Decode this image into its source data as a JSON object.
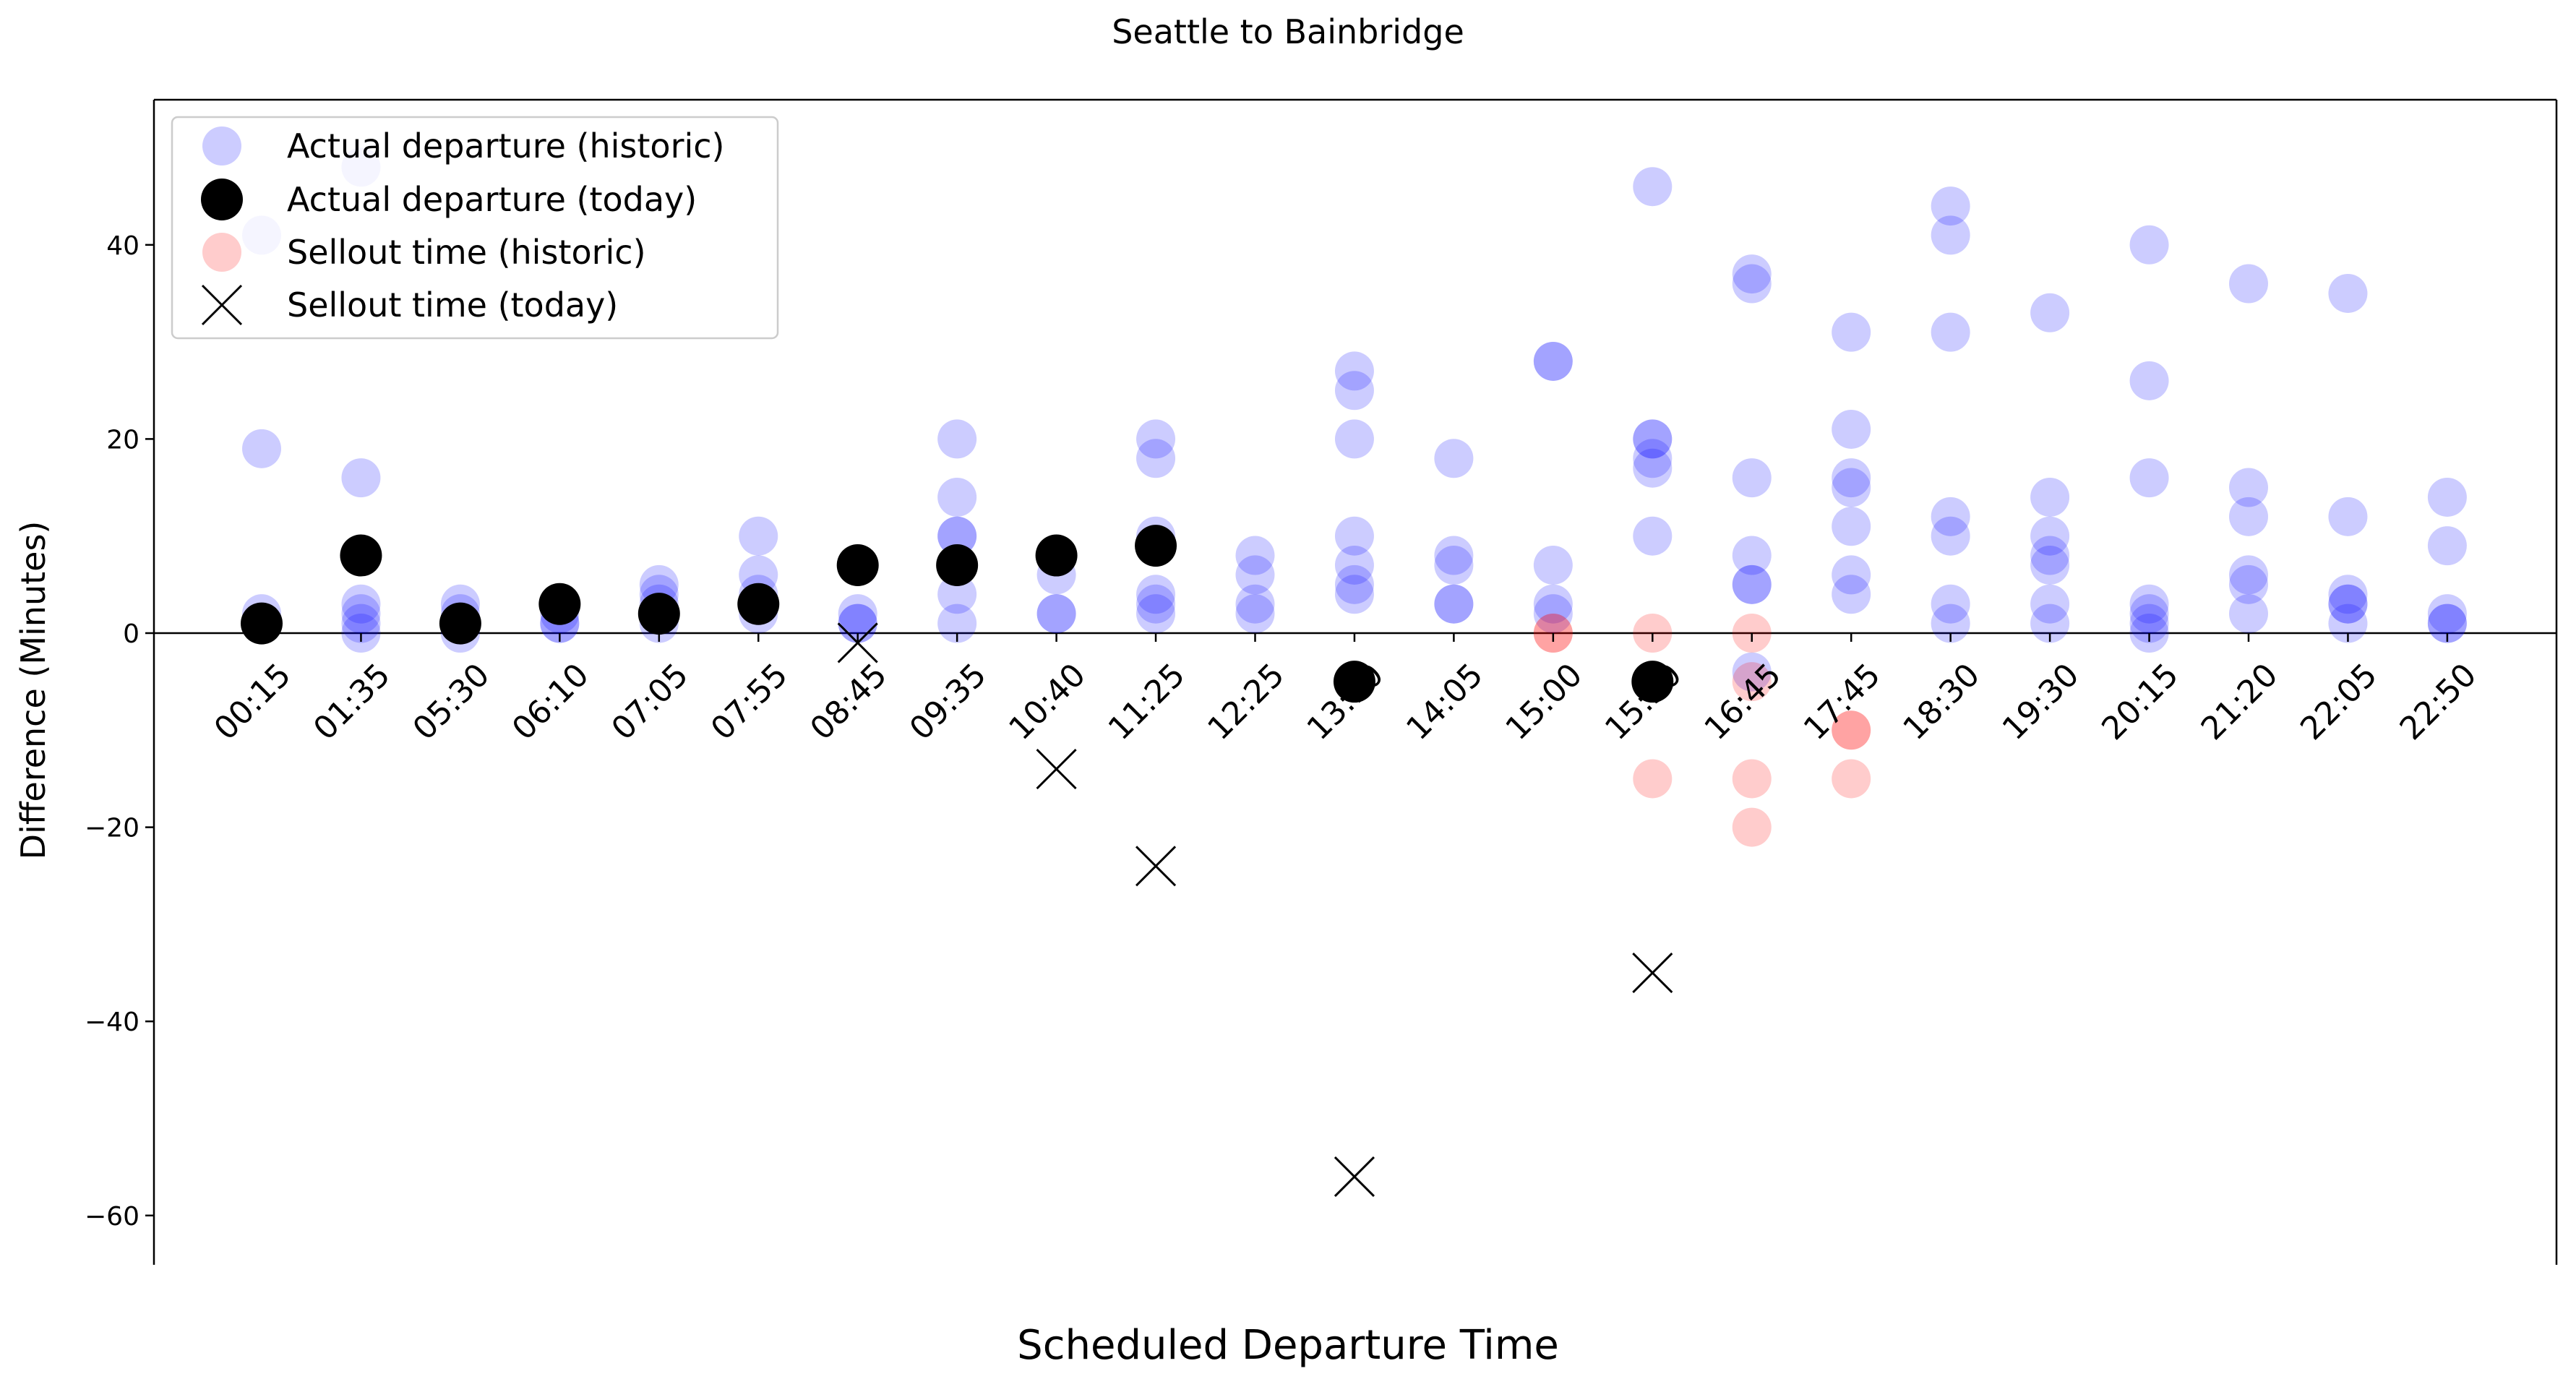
{
  "chart_data": {
    "type": "scatter",
    "title": "Seattle to Bainbridge",
    "xlabel": "Scheduled Departure Time",
    "ylabel": "Difference (Minutes)",
    "ylim": [
      -65,
      55
    ],
    "yticks": [
      40,
      20,
      0,
      -20,
      -40,
      -60
    ],
    "grid": false,
    "legend_position": "top-left",
    "reference_line_y": 0,
    "categories": [
      "00:15",
      "01:35",
      "05:30",
      "06:10",
      "07:05",
      "07:55",
      "08:45",
      "09:35",
      "10:40",
      "11:25",
      "12:25",
      "13:10",
      "14:05",
      "15:00",
      "15:50",
      "16:45",
      "17:45",
      "18:30",
      "19:30",
      "20:15",
      "21:20",
      "22:05",
      "22:50"
    ],
    "colors": {
      "historic_departure": "#0000ff",
      "today_departure": "#000000",
      "historic_sellout": "#ff0000",
      "today_sellout": "#000000"
    },
    "series": [
      {
        "name": "Actual departure (historic)",
        "marker": "circle",
        "points": [
          [
            "00:15",
            41
          ],
          [
            "00:15",
            19
          ],
          [
            "00:15",
            2
          ],
          [
            "00:15",
            1
          ],
          [
            "01:35",
            48
          ],
          [
            "01:35",
            16
          ],
          [
            "01:35",
            3
          ],
          [
            "01:35",
            2
          ],
          [
            "01:35",
            1
          ],
          [
            "01:35",
            0
          ],
          [
            "05:30",
            3
          ],
          [
            "05:30",
            2
          ],
          [
            "05:30",
            1
          ],
          [
            "05:30",
            0
          ],
          [
            "06:10",
            2
          ],
          [
            "06:10",
            1
          ],
          [
            "06:10",
            1
          ],
          [
            "07:05",
            5
          ],
          [
            "07:05",
            4
          ],
          [
            "07:05",
            3
          ],
          [
            "07:05",
            1
          ],
          [
            "07:55",
            10
          ],
          [
            "07:55",
            6
          ],
          [
            "07:55",
            4
          ],
          [
            "07:55",
            3
          ],
          [
            "07:55",
            2
          ],
          [
            "08:45",
            2
          ],
          [
            "08:45",
            1
          ],
          [
            "08:45",
            1
          ],
          [
            "09:35",
            20
          ],
          [
            "09:35",
            14
          ],
          [
            "09:35",
            10
          ],
          [
            "09:35",
            10
          ],
          [
            "09:35",
            4
          ],
          [
            "09:35",
            1
          ],
          [
            "10:40",
            8
          ],
          [
            "10:40",
            6
          ],
          [
            "10:40",
            2
          ],
          [
            "10:40",
            2
          ],
          [
            "11:25",
            20
          ],
          [
            "11:25",
            18
          ],
          [
            "11:25",
            10
          ],
          [
            "11:25",
            4
          ],
          [
            "11:25",
            3
          ],
          [
            "11:25",
            2
          ],
          [
            "12:25",
            8
          ],
          [
            "12:25",
            6
          ],
          [
            "12:25",
            3
          ],
          [
            "12:25",
            2
          ],
          [
            "13:10",
            27
          ],
          [
            "13:10",
            25
          ],
          [
            "13:10",
            20
          ],
          [
            "13:10",
            10
          ],
          [
            "13:10",
            7
          ],
          [
            "13:10",
            5
          ],
          [
            "13:10",
            4
          ],
          [
            "14:05",
            18
          ],
          [
            "14:05",
            8
          ],
          [
            "14:05",
            7
          ],
          [
            "14:05",
            3
          ],
          [
            "14:05",
            3
          ],
          [
            "15:00",
            28
          ],
          [
            "15:00",
            28
          ],
          [
            "15:00",
            7
          ],
          [
            "15:00",
            3
          ],
          [
            "15:00",
            2
          ],
          [
            "15:50",
            46
          ],
          [
            "15:50",
            20
          ],
          [
            "15:50",
            20
          ],
          [
            "15:50",
            18
          ],
          [
            "15:50",
            17
          ],
          [
            "15:50",
            10
          ],
          [
            "16:45",
            37
          ],
          [
            "16:45",
            36
          ],
          [
            "16:45",
            16
          ],
          [
            "16:45",
            8
          ],
          [
            "16:45",
            5
          ],
          [
            "16:45",
            5
          ],
          [
            "16:45",
            -4
          ],
          [
            "17:45",
            31
          ],
          [
            "17:45",
            21
          ],
          [
            "17:45",
            16
          ],
          [
            "17:45",
            15
          ],
          [
            "17:45",
            11
          ],
          [
            "17:45",
            6
          ],
          [
            "17:45",
            4
          ],
          [
            "18:30",
            44
          ],
          [
            "18:30",
            41
          ],
          [
            "18:30",
            31
          ],
          [
            "18:30",
            12
          ],
          [
            "18:30",
            10
          ],
          [
            "18:30",
            3
          ],
          [
            "18:30",
            1
          ],
          [
            "19:30",
            33
          ],
          [
            "19:30",
            14
          ],
          [
            "19:30",
            10
          ],
          [
            "19:30",
            8
          ],
          [
            "19:30",
            7
          ],
          [
            "19:30",
            3
          ],
          [
            "19:30",
            1
          ],
          [
            "20:15",
            40
          ],
          [
            "20:15",
            26
          ],
          [
            "20:15",
            16
          ],
          [
            "20:15",
            3
          ],
          [
            "20:15",
            2
          ],
          [
            "20:15",
            1
          ],
          [
            "20:15",
            0
          ],
          [
            "21:20",
            36
          ],
          [
            "21:20",
            15
          ],
          [
            "21:20",
            12
          ],
          [
            "21:20",
            6
          ],
          [
            "21:20",
            5
          ],
          [
            "21:20",
            2
          ],
          [
            "22:05",
            35
          ],
          [
            "22:05",
            12
          ],
          [
            "22:05",
            4
          ],
          [
            "22:05",
            3
          ],
          [
            "22:05",
            3
          ],
          [
            "22:05",
            1
          ],
          [
            "22:50",
            14
          ],
          [
            "22:50",
            9
          ],
          [
            "22:50",
            2
          ],
          [
            "22:50",
            1
          ],
          [
            "22:50",
            1
          ]
        ]
      },
      {
        "name": "Actual departure (today)",
        "marker": "circle",
        "points": [
          [
            "00:15",
            1
          ],
          [
            "01:35",
            8
          ],
          [
            "05:30",
            1
          ],
          [
            "06:10",
            3
          ],
          [
            "07:05",
            2
          ],
          [
            "07:55",
            3
          ],
          [
            "08:45",
            7
          ],
          [
            "09:35",
            7
          ],
          [
            "10:40",
            8
          ],
          [
            "11:25",
            9
          ],
          [
            "13:10",
            -5
          ],
          [
            "15:50",
            -5
          ]
        ]
      },
      {
        "name": "Sellout time (historic)",
        "marker": "circle",
        "points": [
          [
            "15:00",
            0
          ],
          [
            "15:00",
            0
          ],
          [
            "15:50",
            0
          ],
          [
            "15:50",
            -15
          ],
          [
            "16:45",
            0
          ],
          [
            "16:45",
            -5
          ],
          [
            "16:45",
            -15
          ],
          [
            "16:45",
            -20
          ],
          [
            "17:45",
            -10
          ],
          [
            "17:45",
            -10
          ],
          [
            "17:45",
            -15
          ]
        ]
      },
      {
        "name": "Sellout time (today)",
        "marker": "x",
        "points": [
          [
            "08:45",
            -1
          ],
          [
            "10:40",
            -14
          ],
          [
            "11:25",
            -24
          ],
          [
            "13:10",
            -56
          ],
          [
            "15:50",
            -35
          ]
        ]
      }
    ]
  }
}
